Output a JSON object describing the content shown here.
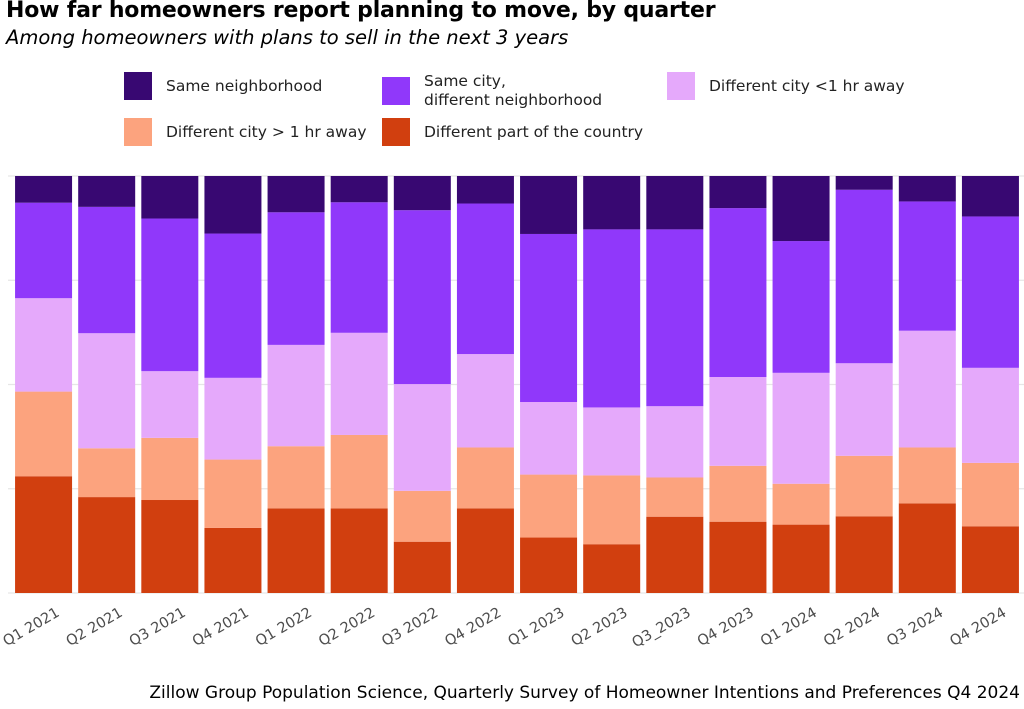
{
  "title": "How far homeowners report planning to move, by quarter",
  "subtitle": "Among homeowners with plans to sell in the next 3 years",
  "source": "Zillow Group Population Science, Quarterly Survey of Homeowner Intentions and Preferences Q4 2024",
  "chart_data": {
    "type": "bar",
    "stacked": true,
    "normalized": true,
    "ylim": [
      0,
      100
    ],
    "grid": true,
    "legend_position": "top",
    "categories": [
      "Q1 2021",
      "Q2 2021",
      "Q3 2021",
      "Q4 2021",
      "Q1 2022",
      "Q2 2022",
      "Q3 2022",
      "Q4 2022",
      "Q1 2023",
      "Q2 2023",
      "Q3_2023",
      "Q4 2023",
      "Q1 2024",
      "Q2 2024",
      "Q3 2024",
      "Q4 2024"
    ],
    "series": [
      {
        "name": "Different part of the country",
        "color": "#D13F0F",
        "values": [
          28,
          23,
          22.3,
          15.6,
          20.3,
          20.3,
          12.3,
          20.3,
          13.3,
          11.7,
          18.3,
          17.1,
          16.4,
          18.4,
          21.5,
          16
        ]
      },
      {
        "name": "Different city > 1 hr away",
        "color": "#FCA37E",
        "values": [
          20.3,
          11.7,
          14.9,
          16.4,
          14.9,
          17.6,
          12.2,
          14.6,
          15.1,
          16.5,
          9.4,
          13.4,
          9.8,
          14.5,
          13.4,
          15.2
        ]
      },
      {
        "name": "Different city <1 hr away",
        "color": "#E5A9FB",
        "values": [
          22.4,
          27.6,
          16,
          19.6,
          24.3,
          24.5,
          25.6,
          22.4,
          17.4,
          16.3,
          17.1,
          21.3,
          26.6,
          22.2,
          28,
          22.8
        ]
      },
      {
        "name": "Same city,\ndifferent neighborhood",
        "color": "#9038FA",
        "values": [
          22.9,
          30.3,
          36.6,
          34.6,
          31.8,
          31.3,
          41.7,
          36.1,
          40.3,
          42.7,
          42.4,
          40.5,
          31.6,
          41.6,
          31,
          36.3
        ]
      },
      {
        "name": "Same neighborhood",
        "color": "#380872",
        "values": [
          6.4,
          7.4,
          10.2,
          13.8,
          8.7,
          6.3,
          8.2,
          6.6,
          13.9,
          12.8,
          12.8,
          7.7,
          15.6,
          3.3,
          6.1,
          9.7
        ]
      }
    ]
  },
  "legend": [
    {
      "label": "Same neighborhood",
      "color": "#380872"
    },
    {
      "label": "Same city,\ndifferent neighborhood",
      "color": "#9038FA"
    },
    {
      "label": "Different city <1 hr away",
      "color": "#E5A9FB"
    },
    {
      "label": "Different city > 1 hr away",
      "color": "#FCA37E"
    },
    {
      "label": "Different part of the country",
      "color": "#D13F0F"
    }
  ]
}
